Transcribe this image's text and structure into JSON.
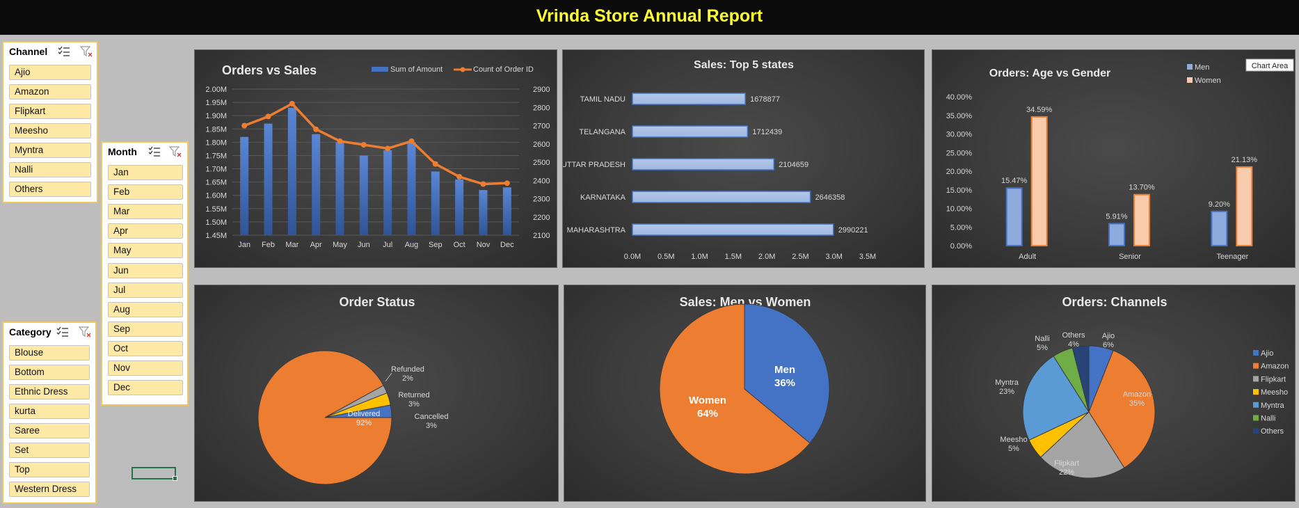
{
  "report_title": "Vrinda Store Annual Report",
  "slicers": {
    "channel": {
      "title": "Channel",
      "items": [
        "Ajio",
        "Amazon",
        "Flipkart",
        "Meesho",
        "Myntra",
        "Nalli",
        "Others"
      ]
    },
    "month": {
      "title": "Month",
      "items": [
        "Jan",
        "Feb",
        "Mar",
        "Apr",
        "May",
        "Jun",
        "Jul",
        "Aug",
        "Sep",
        "Oct",
        "Nov",
        "Dec"
      ]
    },
    "category": {
      "title": "Category",
      "items": [
        "Blouse",
        "Bottom",
        "Ethnic Dress",
        "kurta",
        "Saree",
        "Set",
        "Top",
        "Western Dress"
      ]
    }
  },
  "chart_area_tooltip": "Chart Area",
  "colors": {
    "blue": "#4472C4",
    "orange": "#ED7D31",
    "gray": "#A5A5A5",
    "yellow": "#FFC000",
    "lightblue": "#5B9BD5",
    "green": "#70AD47",
    "navy": "#264478",
    "title_yellow": "#FFFF33"
  },
  "chart_data": [
    {
      "id": "orders_vs_sales",
      "type": "bar",
      "title": "Orders vs Sales",
      "categories": [
        "Jan",
        "Feb",
        "Mar",
        "Apr",
        "May",
        "Jun",
        "Jul",
        "Aug",
        "Sep",
        "Oct",
        "Nov",
        "Dec"
      ],
      "series": [
        {
          "name": "Sum of Amount",
          "type": "bar",
          "axis": "left",
          "values": [
            1.82,
            1.87,
            1.93,
            1.83,
            1.8,
            1.75,
            1.77,
            1.8,
            1.69,
            1.66,
            1.62,
            1.63
          ]
        },
        {
          "name": "Count of Order ID",
          "type": "line",
          "axis": "right",
          "values": [
            2700,
            2750,
            2820,
            2680,
            2615,
            2595,
            2575,
            2615,
            2490,
            2420,
            2380,
            2385
          ]
        }
      ],
      "yleft_ticks": [
        "2.00M",
        "1.95M",
        "1.90M",
        "1.85M",
        "1.80M",
        "1.75M",
        "1.70M",
        "1.65M",
        "1.60M",
        "1.55M",
        "1.50M",
        "1.45M"
      ],
      "yleft_lim": [
        1.45,
        2.0
      ],
      "yright_ticks": [
        "2900",
        "2800",
        "2700",
        "2600",
        "2500",
        "2400",
        "2300",
        "2200",
        "2100"
      ],
      "yright_lim": [
        2100,
        2900
      ],
      "legend": "top-right"
    },
    {
      "id": "top5_states",
      "type": "bar",
      "orientation": "horizontal",
      "title": "Sales: Top 5 states",
      "categories": [
        "TAMIL NADU",
        "TELANGANA",
        "UTTAR PRADESH",
        "KARNATAKA",
        "MAHARASHTRA"
      ],
      "values": [
        1678877,
        1712439,
        2104659,
        2646358,
        2990221
      ],
      "value_labels": [
        "1678877",
        "1712439",
        "2104659",
        "2646358",
        "2990221"
      ],
      "xticks": [
        "0.0M",
        "0.5M",
        "1.0M",
        "1.5M",
        "2.0M",
        "2.5M",
        "3.0M",
        "3.5M"
      ],
      "xlim": [
        0,
        3500000
      ]
    },
    {
      "id": "age_vs_gender",
      "type": "bar",
      "title": "Orders: Age vs Gender",
      "categories": [
        "Adult",
        "Senior",
        "Teenager"
      ],
      "series": [
        {
          "name": "Men",
          "values": [
            15.47,
            5.91,
            9.2
          ],
          "labels": [
            "15.47%",
            "5.91%",
            "9.20%"
          ]
        },
        {
          "name": "Women",
          "values": [
            34.59,
            13.7,
            21.13
          ],
          "labels": [
            "34.59%",
            "13.70%",
            "21.13%"
          ]
        }
      ],
      "yticks": [
        "40.00%",
        "35.00%",
        "30.00%",
        "25.00%",
        "20.00%",
        "15.00%",
        "10.00%",
        "5.00%",
        "0.00%"
      ],
      "ylim": [
        0,
        40
      ],
      "legend": "top-right"
    },
    {
      "id": "order_status",
      "type": "pie",
      "title": "Order Status",
      "labels": [
        "Delivered",
        "Refunded",
        "Returned",
        "Cancelled"
      ],
      "values": [
        92,
        2,
        3,
        3
      ],
      "value_labels": [
        "92%",
        "2%",
        "3%",
        "3%"
      ]
    },
    {
      "id": "men_vs_women",
      "type": "pie",
      "title": "Sales: Men vs Women",
      "labels": [
        "Men",
        "Women"
      ],
      "values": [
        36,
        64
      ],
      "value_labels": [
        "36%",
        "64%"
      ]
    },
    {
      "id": "orders_channels",
      "type": "pie",
      "title": "Orders: Channels",
      "labels": [
        "Ajio",
        "Amazon",
        "Flipkart",
        "Meesho",
        "Myntra",
        "Nalli",
        "Others"
      ],
      "values": [
        6,
        35,
        22,
        5,
        23,
        5,
        4
      ],
      "value_labels": [
        "6%",
        "35%",
        "22%",
        "5%",
        "23%",
        "5%",
        "4%"
      ],
      "legend": "right"
    }
  ]
}
